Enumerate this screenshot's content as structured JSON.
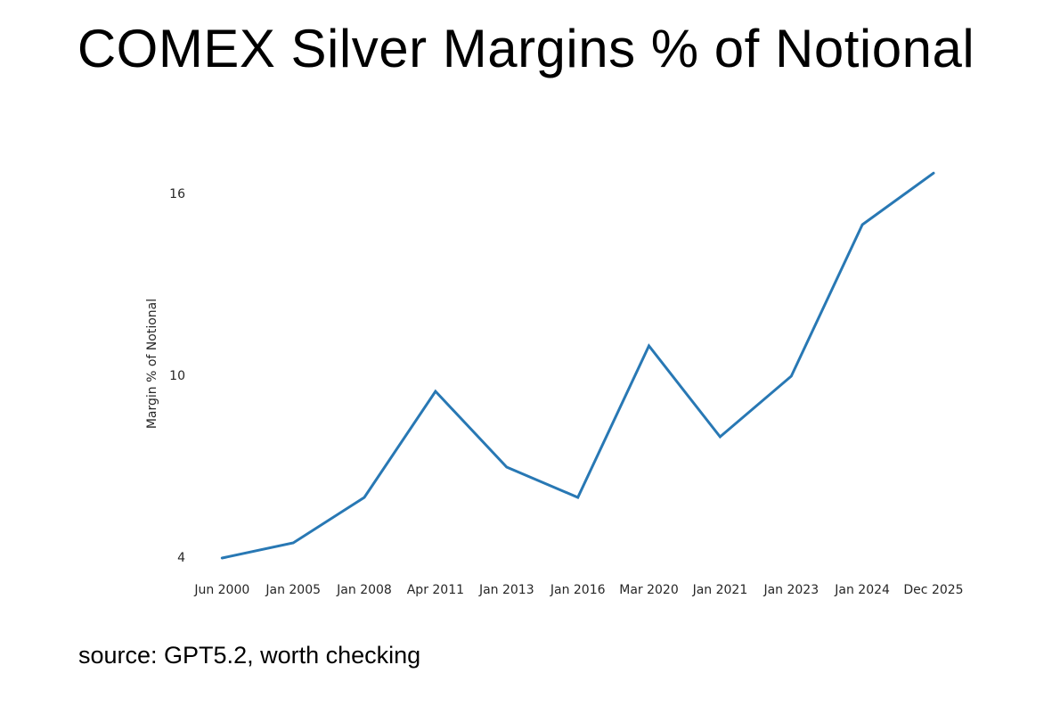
{
  "title": "COMEX Silver Margins % of Notional",
  "source_note": "source: GPT5.2, worth checking",
  "chart_data": {
    "type": "line",
    "title": "COMEX Silver Margins % of Notional",
    "categories": [
      "Jun 2000",
      "Jan 2005",
      "Jan 2008",
      "Apr 2011",
      "Jan 2013",
      "Jan 2016",
      "Mar 2020",
      "Jan 2021",
      "Jan 2023",
      "Jan 2024",
      "Dec 2025"
    ],
    "series": [
      {
        "name": "Margin % of Notional",
        "values": [
          4.0,
          4.5,
          6.0,
          9.5,
          7.0,
          6.0,
          11.0,
          8.0,
          10.0,
          15.0,
          16.7
        ]
      }
    ],
    "xlabel": "",
    "ylabel": "Margin % of Notional",
    "yticks": [
      4,
      10,
      16
    ],
    "ylim": [
      3.8,
      17.3
    ],
    "grid": false,
    "legend": "none",
    "axis_spines": false,
    "line_color": "#2878b4",
    "tick_color": "#262626"
  }
}
